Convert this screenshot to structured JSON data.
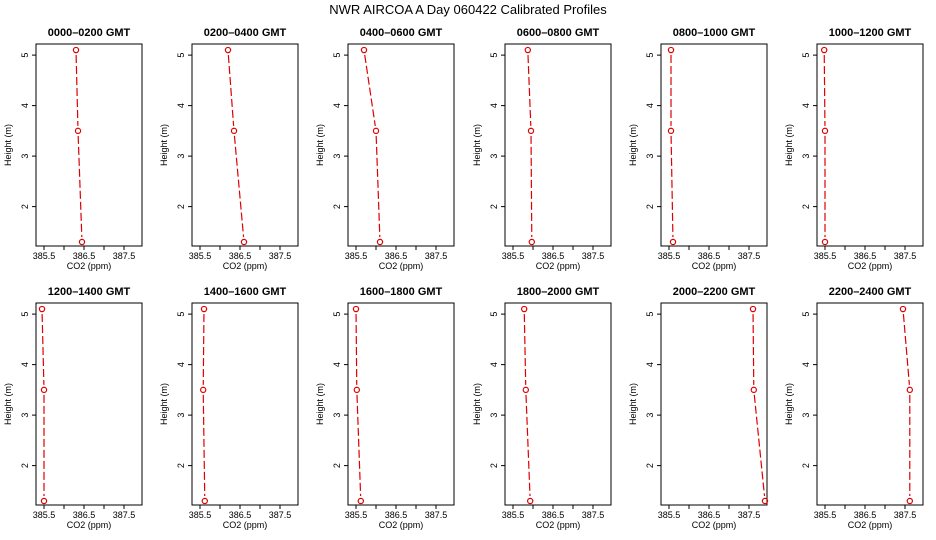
{
  "title": "NWR AIRCOA A  Day 060422  Calibrated Profiles",
  "style": {
    "line_color": "#e00000",
    "point_color": "#e00000",
    "axis_color": "#000000"
  },
  "chart_data": [
    {
      "type": "line",
      "title": "0000–0200 GMT",
      "xlabel": "CO2 (ppm)",
      "ylabel": "Height (m)",
      "xlim": [
        385.3,
        387.95
      ],
      "ylim": [
        1.22,
        5.22
      ],
      "x_ticks": [
        "385.5",
        "386.5",
        "387.5"
      ],
      "y_ticks": [
        "2",
        "3",
        "4",
        "5"
      ],
      "x": [
        386.3,
        386.35,
        386.45
      ],
      "y": [
        5.1,
        3.5,
        1.3
      ]
    },
    {
      "type": "line",
      "title": "0200–0400 GMT",
      "xlabel": "CO2 (ppm)",
      "ylabel": "Height (m)",
      "xlim": [
        385.3,
        387.95
      ],
      "ylim": [
        1.22,
        5.22
      ],
      "x_ticks": [
        "385.5",
        "386.5",
        "387.5"
      ],
      "y_ticks": [
        "2",
        "3",
        "4",
        "5"
      ],
      "x": [
        386.2,
        386.35,
        386.6
      ],
      "y": [
        5.1,
        3.5,
        1.3
      ]
    },
    {
      "type": "line",
      "title": "0400–0600 GMT",
      "xlabel": "CO2 (ppm)",
      "ylabel": "Height (m)",
      "xlim": [
        385.3,
        387.95
      ],
      "ylim": [
        1.22,
        5.22
      ],
      "x_ticks": [
        "385.5",
        "386.5",
        "387.5"
      ],
      "y_ticks": [
        "2",
        "3",
        "4",
        "5"
      ],
      "x": [
        385.7,
        386.0,
        386.1
      ],
      "y": [
        5.1,
        3.5,
        1.3
      ]
    },
    {
      "type": "line",
      "title": "0600–0800 GMT",
      "xlabel": "CO2 (ppm)",
      "ylabel": "Height (m)",
      "xlim": [
        385.3,
        387.95
      ],
      "ylim": [
        1.22,
        5.22
      ],
      "x_ticks": [
        "385.5",
        "386.5",
        "387.5"
      ],
      "y_ticks": [
        "2",
        "3",
        "4",
        "5"
      ],
      "x": [
        385.87,
        385.95,
        385.97
      ],
      "y": [
        5.1,
        3.5,
        1.3
      ]
    },
    {
      "type": "line",
      "title": "0800–1000 GMT",
      "xlabel": "CO2 (ppm)",
      "ylabel": "Height (m)",
      "xlim": [
        385.3,
        387.95
      ],
      "ylim": [
        1.22,
        5.22
      ],
      "x_ticks": [
        "385.5",
        "386.5",
        "387.5"
      ],
      "y_ticks": [
        "2",
        "3",
        "4",
        "5"
      ],
      "x": [
        385.55,
        385.55,
        385.6
      ],
      "y": [
        5.1,
        3.5,
        1.3
      ]
    },
    {
      "type": "line",
      "title": "1000–1200 GMT",
      "xlabel": "CO2 (ppm)",
      "ylabel": "Height (m)",
      "xlim": [
        385.3,
        387.95
      ],
      "ylim": [
        1.22,
        5.22
      ],
      "x_ticks": [
        "385.5",
        "386.5",
        "387.5"
      ],
      "y_ticks": [
        "2",
        "3",
        "4",
        "5"
      ],
      "x": [
        385.48,
        385.5,
        385.5
      ],
      "y": [
        5.1,
        3.5,
        1.3
      ]
    },
    {
      "type": "line",
      "title": "1200–1400 GMT",
      "xlabel": "CO2 (ppm)",
      "ylabel": "Height (m)",
      "xlim": [
        385.3,
        387.95
      ],
      "ylim": [
        1.22,
        5.22
      ],
      "x_ticks": [
        "385.5",
        "386.5",
        "387.5"
      ],
      "y_ticks": [
        "2",
        "3",
        "4",
        "5"
      ],
      "x": [
        385.45,
        385.5,
        385.5
      ],
      "y": [
        5.1,
        3.5,
        1.3
      ]
    },
    {
      "type": "line",
      "title": "1400–1600 GMT",
      "xlabel": "CO2 (ppm)",
      "ylabel": "Height (m)",
      "xlim": [
        385.3,
        387.95
      ],
      "ylim": [
        1.22,
        5.22
      ],
      "x_ticks": [
        "385.5",
        "386.5",
        "387.5"
      ],
      "y_ticks": [
        "2",
        "3",
        "4",
        "5"
      ],
      "x": [
        385.6,
        385.58,
        385.62
      ],
      "y": [
        5.1,
        3.5,
        1.3
      ]
    },
    {
      "type": "line",
      "title": "1600–1800 GMT",
      "xlabel": "CO2 (ppm)",
      "ylabel": "Height (m)",
      "xlim": [
        385.3,
        387.95
      ],
      "ylim": [
        1.22,
        5.22
      ],
      "x_ticks": [
        "385.5",
        "386.5",
        "387.5"
      ],
      "y_ticks": [
        "2",
        "3",
        "4",
        "5"
      ],
      "x": [
        385.5,
        385.52,
        385.62
      ],
      "y": [
        5.1,
        3.5,
        1.3
      ]
    },
    {
      "type": "line",
      "title": "1800–2000 GMT",
      "xlabel": "CO2 (ppm)",
      "ylabel": "Height (m)",
      "xlim": [
        385.3,
        387.95
      ],
      "ylim": [
        1.22,
        5.22
      ],
      "x_ticks": [
        "385.5",
        "386.5",
        "387.5"
      ],
      "y_ticks": [
        "2",
        "3",
        "4",
        "5"
      ],
      "x": [
        385.78,
        385.82,
        385.93
      ],
      "y": [
        5.1,
        3.5,
        1.3
      ]
    },
    {
      "type": "line",
      "title": "2000–2200 GMT",
      "xlabel": "CO2 (ppm)",
      "ylabel": "Height (m)",
      "xlim": [
        385.3,
        387.95
      ],
      "ylim": [
        1.22,
        5.22
      ],
      "x_ticks": [
        "385.5",
        "386.5",
        "387.5"
      ],
      "y_ticks": [
        "2",
        "3",
        "4",
        "5"
      ],
      "x": [
        387.6,
        387.62,
        387.9
      ],
      "y": [
        5.1,
        3.5,
        1.3
      ]
    },
    {
      "type": "line",
      "title": "2200–2400 GMT",
      "xlabel": "CO2 (ppm)",
      "ylabel": "Height (m)",
      "xlim": [
        385.3,
        387.95
      ],
      "ylim": [
        1.22,
        5.22
      ],
      "x_ticks": [
        "385.5",
        "386.5",
        "387.5"
      ],
      "y_ticks": [
        "2",
        "3",
        "4",
        "5"
      ],
      "x": [
        387.45,
        387.62,
        387.62
      ],
      "y": [
        5.1,
        3.5,
        1.3
      ]
    }
  ]
}
